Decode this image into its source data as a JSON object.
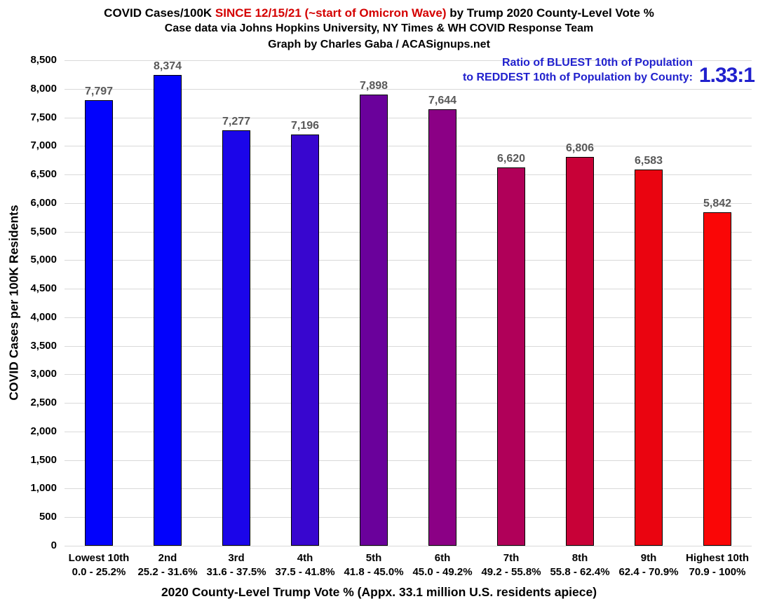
{
  "title": {
    "part1": "COVID Cases/100K ",
    "highlight": "SINCE 12/15/21 (~start of Omicron Wave)",
    "part2": " by Trump 2020 County-Level Vote %",
    "line2": "Case data via Johns Hopkins University, NY Times & WH COVID Response Team",
    "line3": "Graph by Charles Gaba / ACASignups.net"
  },
  "annotation": {
    "line1": "Ratio of BLUEST 10th of Population",
    "line2": "to REDDEST 10th of Population by County:",
    "ratio": "1.33:1",
    "color": "#2121cd"
  },
  "chart_data": {
    "type": "bar",
    "title": "COVID Cases/100K SINCE 12/15/21 (~start of Omicron Wave) by Trump 2020 County-Level Vote %",
    "xlabel": "2020 County-Level Trump Vote % (Appx. 33.1 million U.S. residents apiece)",
    "ylabel": "COVID Cases per 100K Residents",
    "ylim": [
      0,
      8500
    ],
    "ytick_step": 500,
    "grid": true,
    "legend": "none",
    "categories": [
      "Lowest 10th",
      "2nd",
      "3rd",
      "4th",
      "5th",
      "6th",
      "7th",
      "8th",
      "9th",
      "Highest 10th"
    ],
    "category_ranges": [
      "0.0 - 25.2%",
      "25.2 - 31.6%",
      "31.6 - 37.5%",
      "37.5 - 41.8%",
      "41.8 - 45.0%",
      "45.0 - 49.2%",
      "49.2 - 55.8%",
      "55.8 - 62.4%",
      "62.4 - 70.9%",
      "70.9 - 100%"
    ],
    "values": [
      7797,
      8374,
      7277,
      7196,
      7898,
      7644,
      6620,
      6806,
      6583,
      5842
    ],
    "value_labels": [
      "7,797",
      "8,374",
      "7,277",
      "7,196",
      "7,898",
      "7,644",
      "6,620",
      "6,806",
      "6,583",
      "5,842"
    ],
    "bar_colors": [
      "#0202fc",
      "#0202fc",
      "#1b05e9",
      "#3806cf",
      "#6a019b",
      "#8b0085",
      "#b00059",
      "#c80137",
      "#ea0410",
      "#fa0606"
    ],
    "value_label_color": "#595959",
    "gridline_color": "#d9d9d9"
  }
}
